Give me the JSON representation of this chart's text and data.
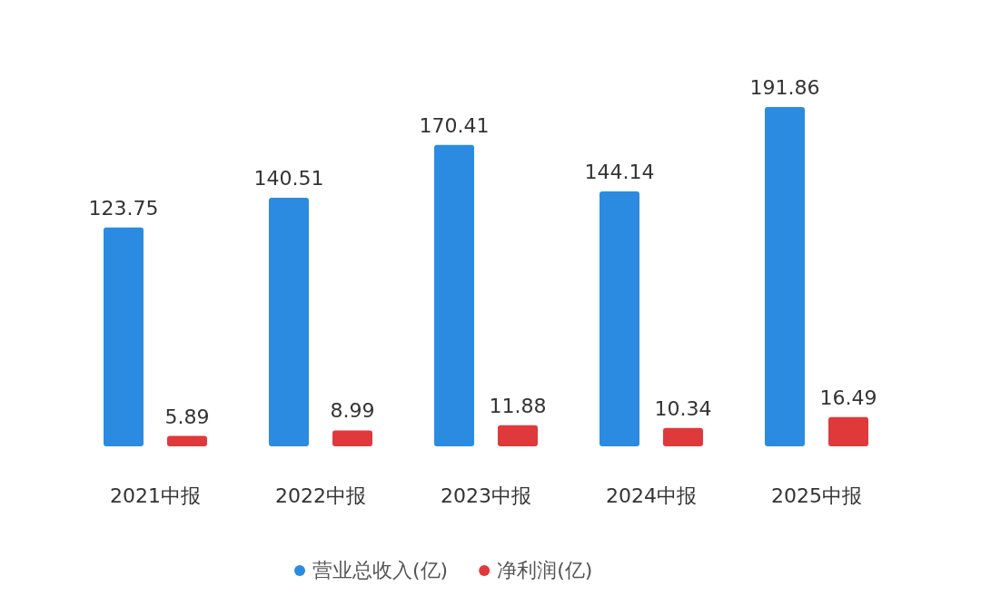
{
  "chart_data": {
    "type": "bar",
    "categories": [
      "2021中报",
      "2022中报",
      "2023中报",
      "2024中报",
      "2025中报"
    ],
    "series": [
      {
        "name": "营业总收入(亿)",
        "color": "#2b8be0",
        "values": [
          123.75,
          140.51,
          170.41,
          144.14,
          191.86
        ]
      },
      {
        "name": "净利润(亿)",
        "color": "#e0393b",
        "values": [
          5.89,
          8.99,
          11.88,
          10.34,
          16.49
        ]
      }
    ],
    "data_labels": true,
    "legend": "bottom",
    "grid": false
  }
}
